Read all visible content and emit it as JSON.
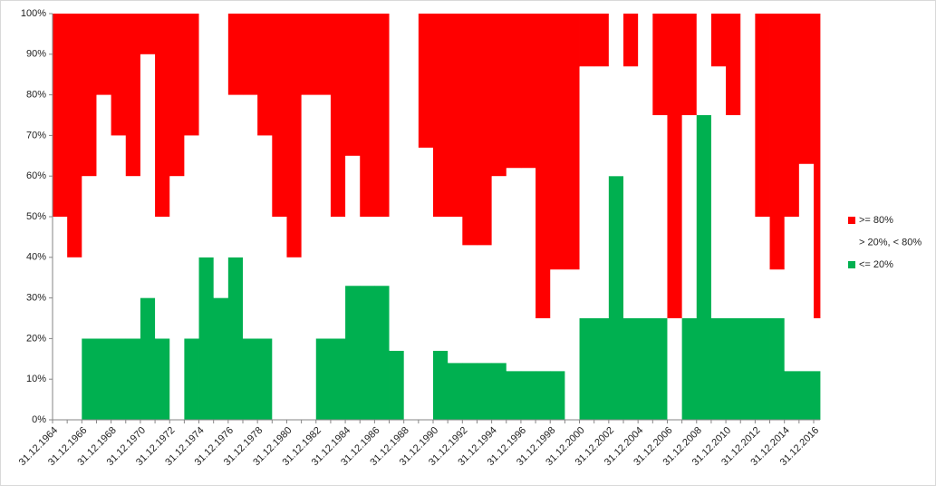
{
  "chart_data": {
    "type": "stacked_step_area",
    "categories": [
      "31.12.1964",
      null,
      "31.12.1966",
      null,
      "31.12.1968",
      null,
      "31.12.1970",
      null,
      "31.12.1972",
      null,
      "31.12.1974",
      null,
      "31.12.1976",
      null,
      "31.12.1978",
      null,
      "31.12.1980",
      null,
      "31.12.1982",
      null,
      "31.12.1984",
      null,
      "31.12.1986",
      null,
      "31.12.1988",
      null,
      "31.12.1990",
      null,
      "31.12.1992",
      null,
      "31.12.1994",
      null,
      "31.12.1996",
      null,
      "31.12.1998",
      null,
      "31.12.2000",
      null,
      "31.12.2002",
      null,
      "31.12.2004",
      null,
      "31.12.2006",
      null,
      "31.12.2008",
      null,
      "31.12.2010",
      null,
      "31.12.2012",
      null,
      "31.12.2014",
      null,
      "31.12.2016"
    ],
    "series": [
      {
        "name": "<= 20%",
        "color": "#00b050",
        "values": [
          0,
          0,
          20,
          20,
          20,
          20,
          30,
          20,
          0,
          20,
          40,
          30,
          40,
          20,
          20,
          0,
          0,
          0,
          20,
          20,
          33,
          33,
          33,
          17,
          0,
          0,
          17,
          14,
          14,
          14,
          14,
          12,
          12,
          12,
          12,
          0,
          25,
          25,
          60,
          25,
          25,
          25,
          0,
          25,
          75,
          25,
          25,
          25,
          25,
          25,
          12,
          12,
          12
        ]
      },
      {
        "name": "> 20%, < 80%",
        "color": "#ffffff",
        "values": [
          50,
          40,
          40,
          60,
          50,
          40,
          60,
          30,
          60,
          50,
          60,
          70,
          40,
          60,
          50,
          50,
          40,
          80,
          60,
          30,
          32,
          17,
          17,
          83,
          100,
          67,
          33,
          36,
          29,
          29,
          46,
          50,
          50,
          13,
          25,
          37,
          62,
          62,
          40,
          62,
          75,
          50,
          25,
          50,
          25,
          62,
          50,
          75,
          25,
          12,
          38,
          51,
          13
        ]
      },
      {
        "name": ">= 80%",
        "color": "#ff0000",
        "values": [
          50,
          60,
          40,
          20,
          30,
          40,
          10,
          50,
          40,
          30,
          0,
          0,
          20,
          20,
          30,
          50,
          60,
          20,
          20,
          50,
          35,
          50,
          50,
          0,
          0,
          33,
          50,
          50,
          57,
          57,
          40,
          38,
          38,
          75,
          63,
          63,
          13,
          13,
          0,
          13,
          0,
          25,
          75,
          25,
          0,
          13,
          25,
          0,
          50,
          63,
          50,
          37,
          75
        ]
      }
    ],
    "ylim": [
      0,
      100
    ],
    "yticks": [
      {
        "value": 0,
        "label": "0%"
      },
      {
        "value": 10,
        "label": "10%"
      },
      {
        "value": 20,
        "label": "20%"
      },
      {
        "value": 30,
        "label": "30%"
      },
      {
        "value": 40,
        "label": "40%"
      },
      {
        "value": 50,
        "label": "50%"
      },
      {
        "value": 60,
        "label": "60%"
      },
      {
        "value": 70,
        "label": "70%"
      },
      {
        "value": 80,
        "label": "80%"
      },
      {
        "value": 90,
        "label": "90%"
      },
      {
        "value": 100,
        "label": "100%"
      }
    ],
    "legend": "right"
  }
}
